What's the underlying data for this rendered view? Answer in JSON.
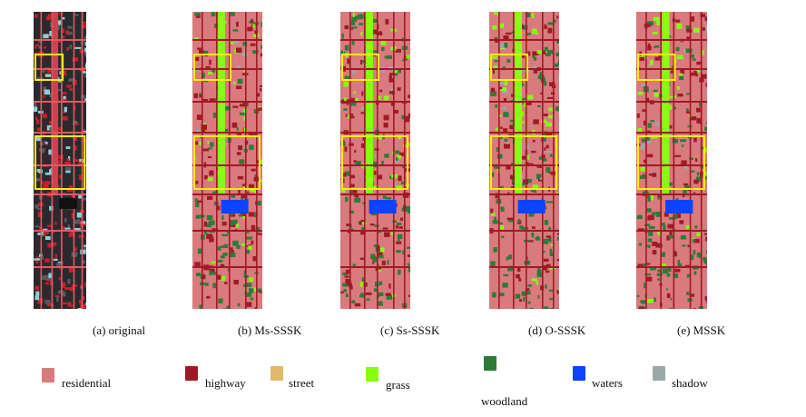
{
  "panels": [
    {
      "id": "a",
      "caption": "(a) original",
      "kind": "original"
    },
    {
      "id": "b",
      "caption": "(b) Ms-SSSK",
      "kind": "map"
    },
    {
      "id": "c",
      "caption": "(c) Ss-SSSK",
      "kind": "map"
    },
    {
      "id": "d",
      "caption": "(d) O-SSSK",
      "kind": "map"
    },
    {
      "id": "e",
      "caption": "(e) MSSK",
      "kind": "map"
    }
  ],
  "legend": [
    {
      "label": "residential",
      "color": "#d97a7e"
    },
    {
      "label": "highway",
      "color": "#a01a26"
    },
    {
      "label": "street",
      "color": "#e2b86a"
    },
    {
      "label": "grass",
      "color": "#86ff10"
    },
    {
      "label": "woodland",
      "color": "#2e7a38"
    },
    {
      "label": "waters",
      "color": "#0a44ff"
    },
    {
      "label": "shadow",
      "color": "#9aa8a8"
    }
  ],
  "highlight_color": "#ffee00"
}
